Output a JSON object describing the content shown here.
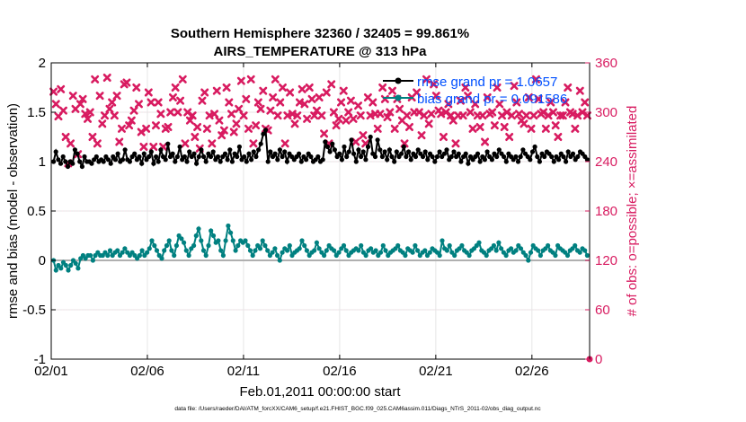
{
  "chart_data": {
    "type": "line",
    "title_line1": "Southern Hemisphere 32360 / 32405 = 99.861%",
    "title_line2": "AIRS_TEMPERATURE @ 313 hPa",
    "ylabel_left": "rmse and bias (model - observation)",
    "ylabel_right": "# of obs: o=possible; ×=assimilated",
    "xlabel": "Feb.01,2011 00:00:00 start",
    "footnote": "data file: /Users/raeder/DAI/ATM_forcXX/CAM6_setup/f.e21.FHIST_BGC.f09_025.CAM6assim.011/Diags_NTrS_2011-02/obs_diag_output.nc",
    "xlim": [
      0,
      28
    ],
    "ylim_left": [
      -1,
      2
    ],
    "ylim_right": [
      0,
      360
    ],
    "x_ticks": [
      0,
      5,
      10,
      15,
      20,
      25
    ],
    "x_tick_labels": [
      "02/01",
      "02/06",
      "02/11",
      "02/16",
      "02/21",
      "02/26"
    ],
    "y_left_ticks": [
      -1,
      -0.5,
      0,
      0.5,
      1,
      1.5,
      2
    ],
    "y_left_tick_labels": [
      "-1",
      "-0.5",
      "0",
      "0.5",
      "1",
      "1.5",
      "2"
    ],
    "y_right_ticks": [
      0,
      60,
      120,
      180,
      240,
      300,
      360
    ],
    "y_right_tick_labels": [
      "0",
      "60",
      "120",
      "180",
      "240",
      "300",
      "360"
    ],
    "grid": true,
    "legend_position": "top-right",
    "colors": {
      "rmse": "#000000",
      "bias": "#008080",
      "obs": "#d81b60",
      "zero_line": "#b0b0b0",
      "grid": "#e6e6e6",
      "legend_text": "#0050ff"
    },
    "series": [
      {
        "name": "rmse grand pr = 1.0657",
        "axis": "left",
        "values": [
          1.0,
          1.1,
          1.02,
          0.98,
          1.05,
          1.0,
          0.95,
          1.0,
          0.98,
          1.12,
          1.08,
          1.0,
          0.95,
          1.05,
          1.0,
          1.0,
          0.98,
          1.02,
          1.05,
          1.0,
          1.02,
          1.0,
          1.05,
          1.02,
          0.98,
          1.05,
          1.02,
          1.08,
          1.0,
          1.02,
          1.12,
          1.02,
          1.0,
          1.05,
          1.08,
          1.02,
          1.05,
          0.98,
          1.08,
          1.02,
          1.05,
          1.1,
          0.98,
          1.05,
          1.0,
          1.12,
          1.05,
          1.02,
          1.18,
          1.05,
          1.08,
          1.0,
          1.05,
          1.15,
          1.02,
          1.05,
          1.0,
          1.1,
          1.05,
          1.08,
          0.98,
          1.05,
          1.12,
          1.05,
          1.0,
          1.08,
          1.05,
          1.1,
          1.02,
          1.05,
          1.0,
          1.05,
          1.08,
          1.02,
          1.12,
          1.0,
          1.08,
          1.05,
          1.15,
          1.02,
          1.05,
          1.0,
          1.08,
          1.02,
          1.1,
          1.05,
          1.12,
          1.18,
          1.28,
          1.32,
          1.0,
          1.1,
          1.05,
          1.08,
          1.02,
          1.12,
          1.05,
          1.1,
          1.0,
          1.08,
          1.05,
          1.02,
          1.05,
          1.08,
          1.0,
          1.05,
          1.02,
          1.08,
          1.05,
          1.0,
          1.02,
          1.05,
          1.0,
          1.02,
          1.2,
          1.15,
          1.1,
          1.18,
          1.12,
          1.05,
          1.08,
          1.02,
          1.15,
          1.05,
          1.1,
          1.22,
          1.08,
          1.0,
          1.12,
          1.05,
          1.1,
          1.02,
          1.15,
          1.25,
          1.08,
          1.05,
          1.22,
          1.12,
          1.05,
          1.1,
          1.02,
          1.12,
          1.05,
          1.0,
          1.1,
          1.05,
          1.08,
          1.15,
          1.05,
          1.1,
          1.02,
          1.08,
          1.05,
          1.12,
          1.08,
          1.05,
          1.1,
          1.02,
          1.08,
          1.05,
          1.0,
          1.05,
          1.1,
          1.05,
          1.08,
          1.12,
          1.02,
          1.05,
          1.1,
          1.05,
          1.08,
          1.0,
          1.05,
          1.08,
          0.98,
          1.05,
          1.02,
          1.05,
          1.08,
          1.0,
          1.05,
          1.02,
          1.1,
          1.05,
          1.02,
          1.08,
          1.05,
          1.12,
          1.08,
          1.05,
          1.0,
          1.08,
          1.05,
          1.02,
          1.05,
          1.0,
          1.05,
          1.12,
          1.08,
          1.05,
          1.02,
          1.1,
          1.15,
          1.05,
          1.0,
          1.08,
          1.05,
          1.1,
          1.08,
          1.05,
          1.0,
          1.05,
          1.02,
          1.08,
          1.05,
          1.0,
          1.1,
          1.05,
          1.08,
          1.02,
          1.05,
          1.1,
          1.08,
          1.05,
          1.02
        ]
      },
      {
        "name": "bias grand pr = 0.091586",
        "axis": "left",
        "values": [
          0.0,
          -0.1,
          -0.05,
          -0.08,
          -0.02,
          -0.05,
          -0.1,
          -0.05,
          0.0,
          -0.03,
          -0.08,
          0.02,
          0.05,
          0.02,
          0.05,
          0.05,
          0.0,
          0.05,
          0.08,
          0.05,
          0.05,
          0.08,
          0.05,
          0.1,
          0.05,
          0.08,
          0.1,
          0.05,
          0.08,
          0.12,
          0.08,
          0.05,
          0.08,
          0.05,
          0.02,
          0.05,
          0.1,
          0.05,
          0.08,
          0.12,
          0.2,
          0.15,
          0.1,
          0.05,
          0.02,
          0.1,
          0.15,
          0.2,
          0.1,
          0.05,
          0.15,
          0.25,
          0.22,
          0.18,
          0.1,
          0.05,
          0.12,
          0.15,
          0.25,
          0.32,
          0.2,
          0.1,
          0.05,
          0.15,
          0.3,
          0.25,
          0.18,
          0.2,
          0.1,
          0.05,
          0.2,
          0.35,
          0.28,
          0.2,
          0.1,
          0.15,
          0.2,
          0.18,
          0.2,
          0.15,
          0.1,
          0.05,
          0.1,
          0.15,
          0.12,
          0.2,
          0.15,
          0.1,
          0.05,
          0.08,
          0.12,
          0.05,
          0.0,
          0.08,
          0.12,
          0.1,
          0.15,
          0.05,
          0.08,
          0.1,
          0.12,
          0.2,
          0.15,
          0.1,
          0.05,
          0.08,
          0.1,
          0.18,
          0.12,
          0.08,
          0.05,
          0.1,
          0.15,
          0.12,
          0.1,
          0.05,
          0.08,
          0.12,
          0.15,
          0.1,
          0.05,
          0.08,
          0.1,
          0.12,
          0.1,
          0.15,
          0.08,
          0.05,
          0.1,
          0.12,
          0.08,
          0.1,
          0.05,
          0.08,
          0.15,
          0.1,
          0.05,
          0.08,
          0.1,
          0.12,
          0.15,
          0.1,
          0.08,
          0.05,
          0.12,
          0.1,
          0.08,
          0.15,
          0.1,
          0.05,
          0.08,
          0.1,
          0.05,
          0.08,
          0.12,
          0.1,
          0.08,
          0.05,
          0.2,
          0.12,
          0.1,
          0.15,
          0.08,
          0.05,
          0.1,
          0.12,
          0.15,
          0.1,
          0.08,
          0.05,
          0.1,
          0.12,
          0.15,
          0.18,
          0.1,
          0.08,
          0.05,
          0.1,
          0.12,
          0.15,
          0.1,
          0.18,
          0.12,
          0.08,
          0.05,
          0.1,
          0.12,
          0.08,
          0.1,
          0.15,
          0.12,
          0.08,
          0.05,
          0.0,
          0.08,
          0.15,
          0.12,
          0.1,
          0.05,
          0.1,
          0.12,
          0.15,
          0.1,
          0.08,
          0.05,
          0.15,
          0.12,
          0.1,
          0.08,
          0.05,
          0.1,
          0.12,
          0.15,
          0.1,
          0.08,
          0.12,
          0.1,
          0.05
        ]
      },
      {
        "name": "",
        "axis": "right",
        "marker": "×",
        "values": [
          325,
          310,
          295,
          328,
          302,
          270,
          238,
          262,
          320,
          304,
          249,
          310,
          316,
          298,
          292,
          300,
          270,
          340,
          262,
          320,
          286,
          296,
          342,
          304,
          312,
          296,
          320,
          264,
          280,
          334,
          336,
          284,
          290,
          302,
          330,
          310,
          276,
          258,
          280,
          324,
          312,
          258,
          284,
          312,
          298,
          258,
          280,
          282,
          300,
          318,
          330,
          300,
          314,
          340,
          262,
          300,
          290,
          296,
          270,
          282,
          256,
          314,
          324,
          280,
          296,
          262,
          298,
          326,
          290,
          272,
          278,
          330,
          312,
          298,
          276,
          286,
          304,
          338,
          296,
          316,
          280,
          340,
          262,
          284,
          312,
          304,
          326,
          280,
          278,
          302,
          318,
          340,
          296,
          312,
          330,
          262,
          296,
          324,
          298,
          286,
          296,
          312,
          328,
          310,
          292,
          330,
          316,
          296,
          302,
          318,
          296,
          274,
          324,
          262,
          334,
          300,
          284,
          292,
          312,
          326,
          290,
          300,
          314,
          292,
          264,
          308,
          296,
          272,
          262,
          318,
          296,
          312,
          298,
          280,
          298,
          330,
          316,
          294,
          300,
          326,
          280,
          316,
          304,
          290,
          262,
          296,
          282,
          318,
          300,
          324,
          300,
          272,
          296,
          340,
          286,
          298,
          334,
          320,
          302,
          298,
          270,
          300,
          310,
          296,
          290,
          262,
          296,
          314,
          296,
          330,
          320,
          300,
          280,
          310,
          296,
          282,
          296,
          264,
          318,
          298,
          300,
          284,
          330,
          310,
          296,
          282,
          300,
          270,
          296,
          332,
          312,
          298,
          290,
          286,
          296,
          318,
          280,
          296,
          340,
          316,
          298,
          300,
          280,
          296,
          312,
          300,
          284,
          270,
          296,
          296,
          312,
          330,
          300,
          298,
          280,
          296,
          326,
          300,
          312,
          296
        ]
      }
    ]
  }
}
